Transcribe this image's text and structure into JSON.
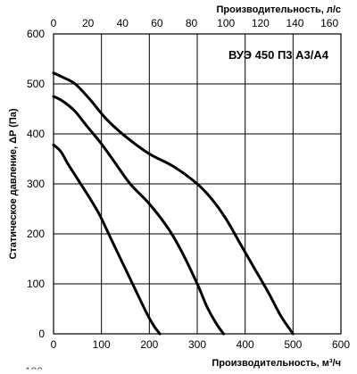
{
  "chart_data": {
    "type": "line",
    "title": "",
    "model_label": "ВУЭ 450 П3 А3/А4",
    "xlabel": "Производительность, м³/ч",
    "x2label": "Производительность, л/с",
    "ylabel": "Статическое давление, ΔP (Па)",
    "xlim": [
      0,
      600
    ],
    "x2lim": [
      0,
      166.67
    ],
    "ylim": [
      0,
      600
    ],
    "x_ticks": [
      0,
      100,
      200,
      300,
      400,
      500,
      600
    ],
    "x2_ticks": [
      0,
      20,
      40,
      60,
      80,
      100,
      120,
      140,
      160
    ],
    "y_ticks": [
      0,
      100,
      200,
      300,
      400,
      500,
      600
    ],
    "grid": true,
    "legend": "none",
    "partial_bottom_text": "100",
    "series": [
      {
        "x": [
          0,
          20,
          45,
          75,
          110,
          150,
          200,
          250,
          300,
          330,
          360,
          390,
          420,
          450,
          475,
          500
        ],
        "y": [
          522,
          513,
          500,
          470,
          430,
          395,
          360,
          335,
          300,
          270,
          230,
          180,
          130,
          80,
          35,
          0
        ]
      },
      {
        "x": [
          0,
          20,
          45,
          70,
          100,
          130,
          160,
          200,
          240,
          270,
          300,
          320,
          340,
          355
        ],
        "y": [
          475,
          465,
          445,
          415,
          380,
          340,
          300,
          260,
          210,
          160,
          100,
          55,
          20,
          0
        ]
      },
      {
        "x": [
          0,
          15,
          30,
          50,
          70,
          95,
          120,
          145,
          170,
          195,
          210,
          222
        ],
        "y": [
          378,
          365,
          340,
          310,
          280,
          240,
          190,
          140,
          90,
          40,
          15,
          0
        ]
      }
    ]
  }
}
